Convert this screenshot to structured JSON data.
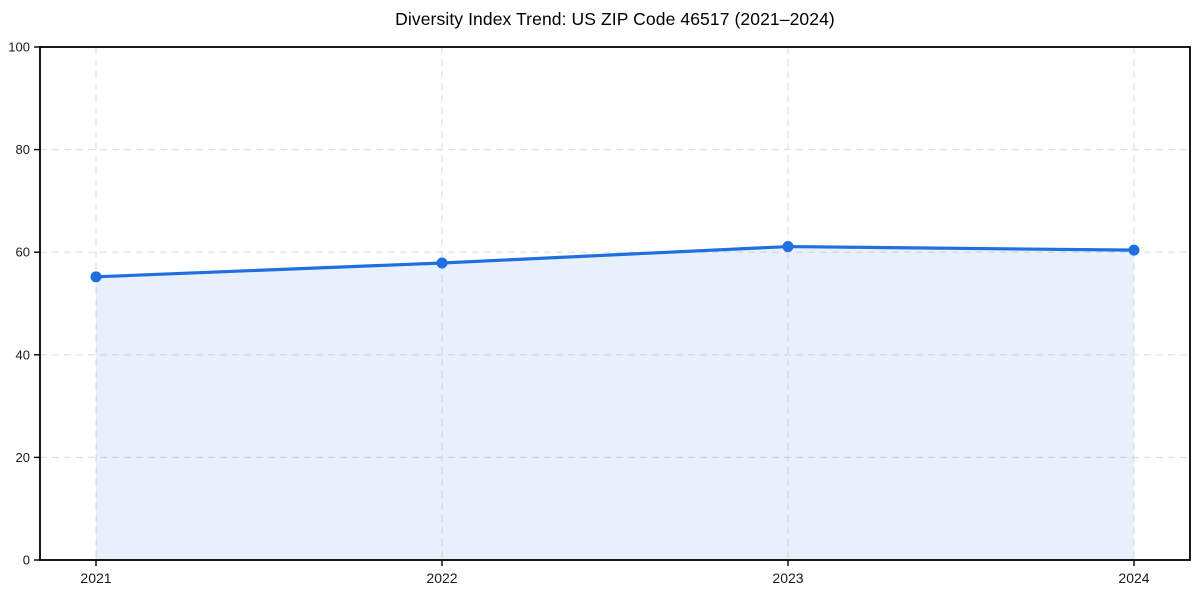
{
  "chart_data": {
    "type": "line",
    "title": "Diversity Index Trend: US ZIP Code 46517 (2021–2024)",
    "categories": [
      "2021",
      "2022",
      "2023",
      "2024"
    ],
    "values": [
      55.2,
      57.9,
      61.1,
      60.4
    ],
    "xlabel": "",
    "ylabel": "",
    "ylim": [
      0,
      100
    ],
    "yticks": [
      0,
      20,
      40,
      60,
      80,
      100
    ],
    "grid": "dashed-both-axes",
    "legend": "none",
    "markers": "filled-circle",
    "area_fill": true,
    "colors": {
      "line": "#1f6fe0",
      "fill": "rgba(31,111,224,0.10)",
      "grid": "#e1e1e1",
      "axis": "#000000",
      "text": "#1a1a1a",
      "background": "#ffffff"
    }
  }
}
